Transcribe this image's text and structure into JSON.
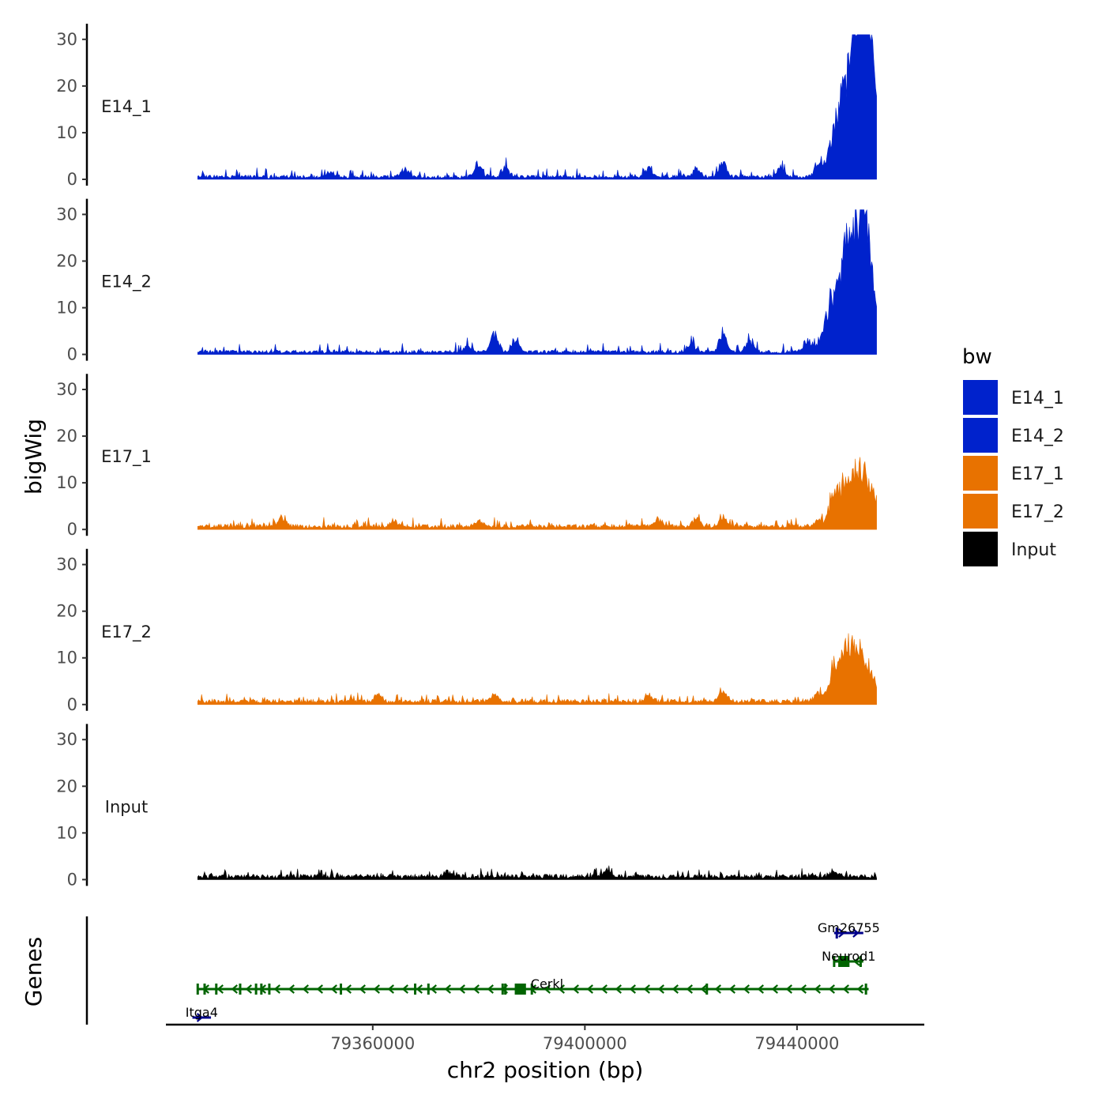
{
  "chart_data": {
    "type": "area",
    "title": "",
    "ylabel": "bigWig",
    "xlabel": "chr2 position (bp)",
    "genes_label": "Genes",
    "xlim": [
      79321000,
      79464000
    ],
    "data_xrange": [
      79327000,
      79455000
    ],
    "ylim": [
      0,
      32
    ],
    "y_ticks": [
      0,
      10,
      20,
      30
    ],
    "x_ticks": [
      79360000,
      79400000,
      79440000
    ],
    "x_tick_labels": [
      "79360000",
      "79400000",
      "79440000"
    ],
    "grid": false,
    "series": [
      {
        "name": "E14_1",
        "color": "#0022CC",
        "baseline": 0.8,
        "noise": 1.0,
        "peaks": [
          {
            "x": 79352000,
            "h": 1.5
          },
          {
            "x": 79366000,
            "h": 2.0
          },
          {
            "x": 79380000,
            "h": 2.8
          },
          {
            "x": 79385000,
            "h": 2.5
          },
          {
            "x": 79412000,
            "h": 2.0
          },
          {
            "x": 79421000,
            "h": 2.0
          },
          {
            "x": 79426000,
            "h": 3.5
          },
          {
            "x": 79437000,
            "h": 2.5
          },
          {
            "x": 79444000,
            "h": 3.0
          },
          {
            "x": 79447000,
            "h": 8.0
          },
          {
            "x": 79449000,
            "h": 17.0
          },
          {
            "x": 79451000,
            "h": 24.0
          },
          {
            "x": 79452500,
            "h": 25.0
          },
          {
            "x": 79453500,
            "h": 20.0
          },
          {
            "x": 79454500,
            "h": 8.0
          }
        ]
      },
      {
        "name": "E14_2",
        "color": "#0022CC",
        "baseline": 0.8,
        "noise": 1.0,
        "peaks": [
          {
            "x": 79378000,
            "h": 2.0
          },
          {
            "x": 79383000,
            "h": 4.5
          },
          {
            "x": 79387000,
            "h": 3.0
          },
          {
            "x": 79420000,
            "h": 2.0
          },
          {
            "x": 79426000,
            "h": 5.0
          },
          {
            "x": 79431000,
            "h": 2.5
          },
          {
            "x": 79442000,
            "h": 3.0
          },
          {
            "x": 79446000,
            "h": 9.0
          },
          {
            "x": 79448500,
            "h": 17.0
          },
          {
            "x": 79450500,
            "h": 21.0
          },
          {
            "x": 79452500,
            "h": 27.0
          },
          {
            "x": 79454000,
            "h": 10.0
          }
        ]
      },
      {
        "name": "E17_1",
        "color": "#E87200",
        "baseline": 1.0,
        "noise": 0.9,
        "peaks": [
          {
            "x": 79343000,
            "h": 2.5
          },
          {
            "x": 79364000,
            "h": 1.5
          },
          {
            "x": 79380000,
            "h": 1.5
          },
          {
            "x": 79414000,
            "h": 1.5
          },
          {
            "x": 79421000,
            "h": 2.0
          },
          {
            "x": 79426000,
            "h": 2.5
          },
          {
            "x": 79444000,
            "h": 2.0
          },
          {
            "x": 79446500,
            "h": 5.0
          },
          {
            "x": 79448500,
            "h": 9.0
          },
          {
            "x": 79451000,
            "h": 10.0
          },
          {
            "x": 79453000,
            "h": 11.0
          },
          {
            "x": 79454500,
            "h": 4.0
          }
        ]
      },
      {
        "name": "E17_2",
        "color": "#E87200",
        "baseline": 1.0,
        "noise": 0.9,
        "peaks": [
          {
            "x": 79361000,
            "h": 2.0
          },
          {
            "x": 79383000,
            "h": 1.5
          },
          {
            "x": 79412000,
            "h": 1.5
          },
          {
            "x": 79426000,
            "h": 2.5
          },
          {
            "x": 79444000,
            "h": 2.0
          },
          {
            "x": 79446500,
            "h": 5.0
          },
          {
            "x": 79448500,
            "h": 11.0
          },
          {
            "x": 79450500,
            "h": 9.0
          },
          {
            "x": 79452500,
            "h": 10.0
          },
          {
            "x": 79454500,
            "h": 3.5
          }
        ]
      },
      {
        "name": "Input",
        "color": "#000000",
        "baseline": 1.0,
        "noise": 0.9,
        "peaks": [
          {
            "x": 79374000,
            "h": 1.0
          },
          {
            "x": 79404000,
            "h": 1.5
          },
          {
            "x": 79447000,
            "h": 1.2
          }
        ]
      }
    ],
    "legend": {
      "title": "bw",
      "position": "right",
      "entries": [
        {
          "label": "E14_1",
          "color": "#0022CC"
        },
        {
          "label": "E14_2",
          "color": "#0022CC"
        },
        {
          "label": "E17_1",
          "color": "#E87200"
        },
        {
          "label": "E17_2",
          "color": "#E87200"
        },
        {
          "label": "Input",
          "color": "#000000"
        }
      ]
    },
    "genes": [
      {
        "name": "Cerkl",
        "start": 79327000,
        "end": 79453500,
        "strand": "-",
        "color": "#006400",
        "exons": [
          79327000,
          79328300,
          79330500,
          79335000,
          79338000,
          79339000,
          79340500,
          79354000,
          79368000,
          79370500,
          79384500,
          79385000,
          79387000,
          79388000,
          79390000,
          79423000,
          79453000
        ]
      },
      {
        "name": "Neurod1",
        "start": 79447000,
        "end": 79452500,
        "strand": "-",
        "color": "#006400",
        "exons": [
          79447000,
          79448000,
          79449000,
          79452000
        ]
      },
      {
        "name": "Gm26755",
        "start": 79447000,
        "end": 79452500,
        "strand": "+",
        "color": "#00008B",
        "exons": [
          79447500
        ]
      },
      {
        "name": "Itga4",
        "start": 79326000,
        "end": 79329500,
        "strand": "+",
        "color": "#00008B",
        "exons": []
      }
    ]
  }
}
